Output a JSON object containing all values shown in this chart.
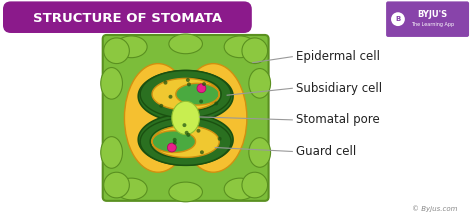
{
  "title": "STRUCTURE OF STOMATA",
  "title_bg": "#8B1A8B",
  "title_fg": "#FFFFFF",
  "bg_color": "#FFFFFF",
  "byju_text": "© Byjus.com",
  "colors": {
    "diagram_bg": "#7CBD3A",
    "diagram_border": "#5A9020",
    "epidermal_blobs": "#8CC840",
    "epidermal_blob_edge": "#5A9020",
    "yellow_large": "#F5C030",
    "yellow_large_edge": "#D09010",
    "guard_outer": "#2A7020",
    "guard_outer_edge": "#1A5010",
    "guard_inner": "#4AAA40",
    "guard_inner_edge": "#2A7020",
    "yellow_inner": "#F0C830",
    "stomatal_pore": "#C8EE50",
    "stomatal_pore_edge": "#90C030",
    "pink_dot": "#E8208A"
  },
  "labels": [
    "Epidermal cell",
    "Subsidiary cell",
    "Stomatal pore",
    "Guard cell"
  ],
  "label_fontsize": 8.5,
  "line_color": "#999999"
}
